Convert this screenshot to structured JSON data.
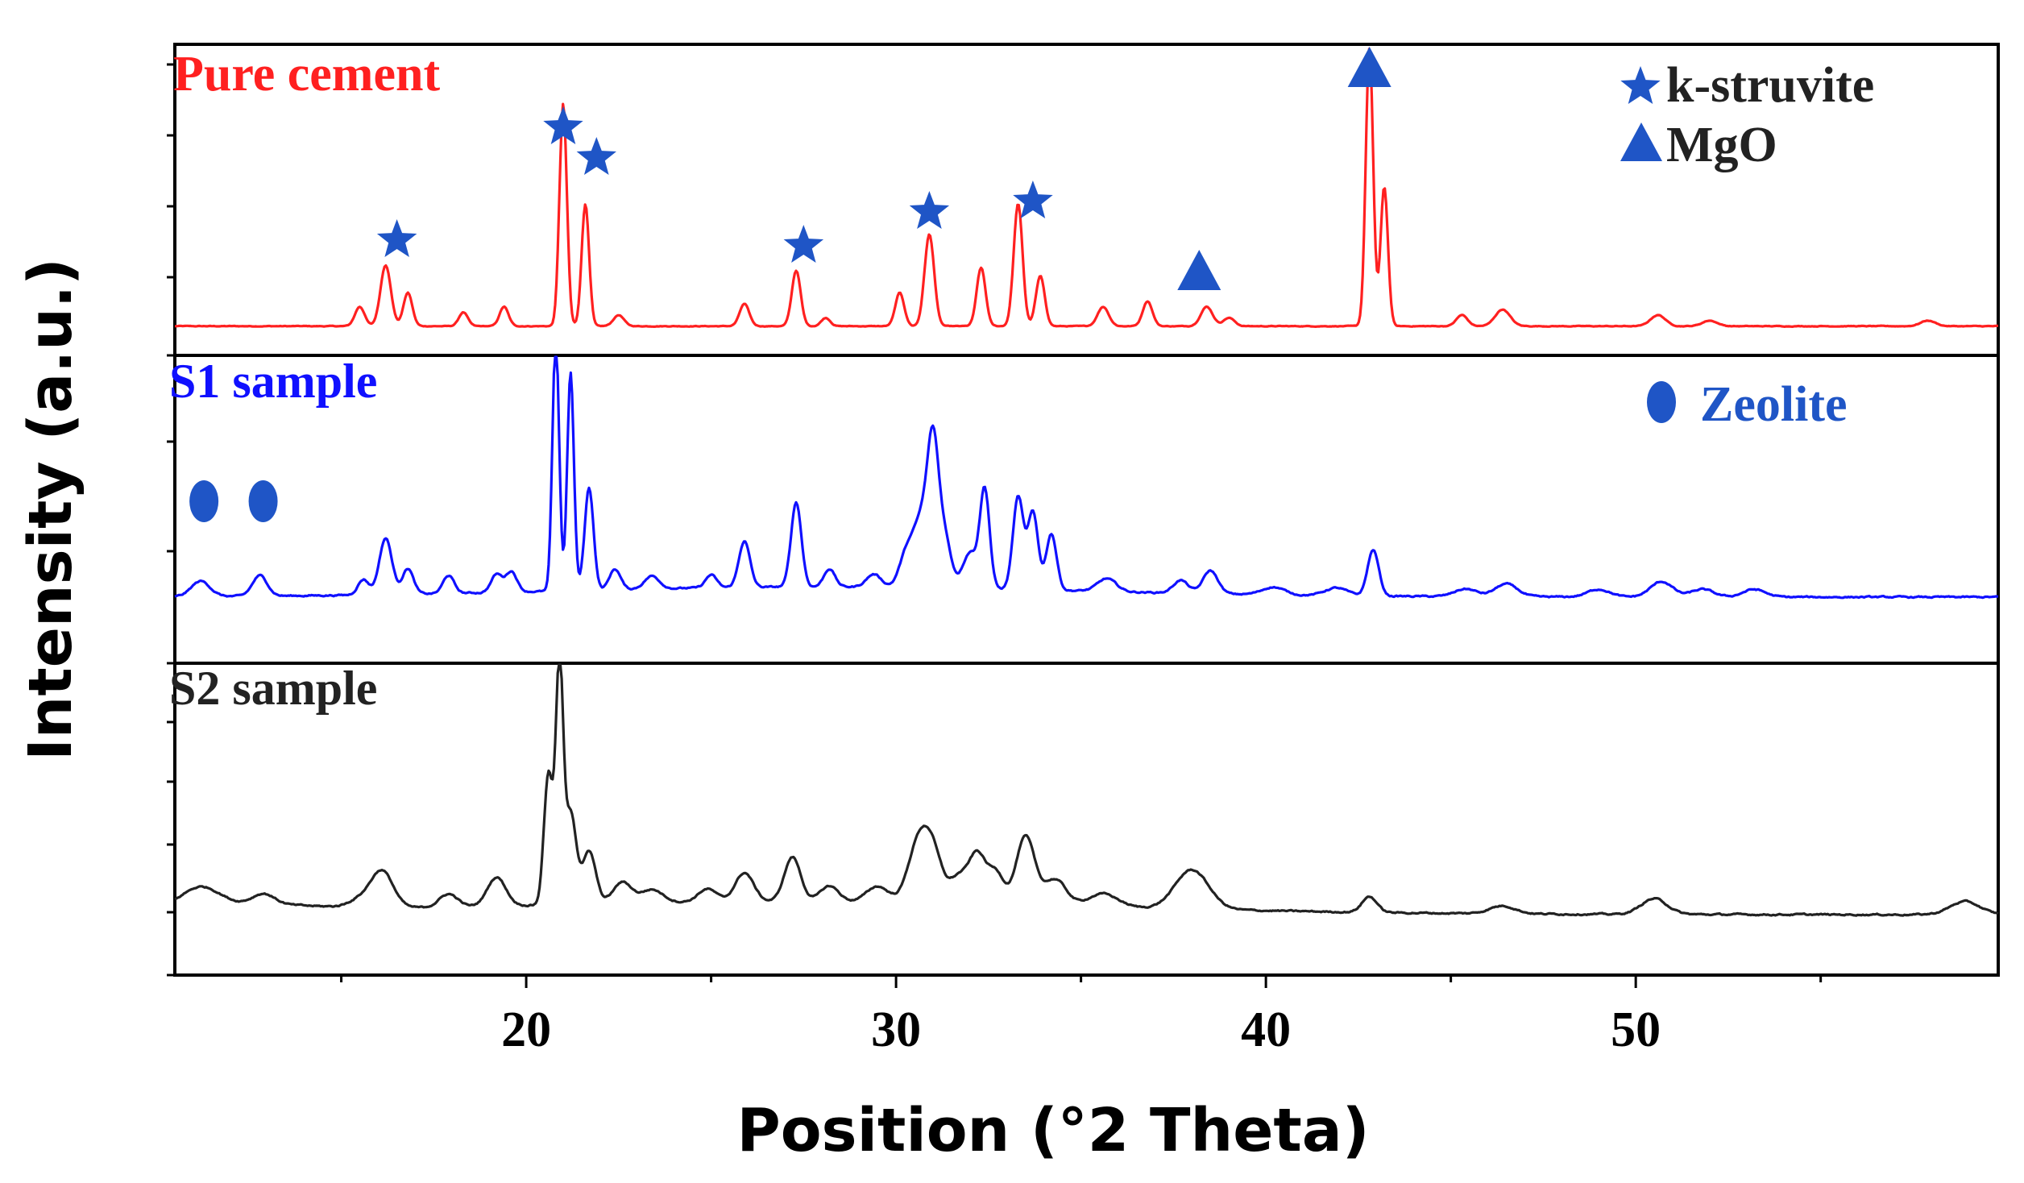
{
  "chart_data": {
    "type": "line",
    "xlabel": "Position (°2 Theta)",
    "ylabel": "Intensity (a.u.)",
    "xlim": [
      10.5,
      59.8
    ],
    "x_ticks": [
      20,
      30,
      40,
      50
    ],
    "y_units": "arbitrary",
    "grid": false,
    "series": [
      {
        "name": "Pure cement",
        "color": "#ff2020",
        "baseline": 0.05,
        "peaks": [
          [
            15.5,
            0.07,
            0.13
          ],
          [
            16.2,
            0.22,
            0.14
          ],
          [
            16.8,
            0.12,
            0.12
          ],
          [
            18.3,
            0.05,
            0.12
          ],
          [
            19.4,
            0.07,
            0.12
          ],
          [
            21.0,
            0.8,
            0.1
          ],
          [
            21.6,
            0.44,
            0.1
          ],
          [
            22.5,
            0.04,
            0.14
          ],
          [
            25.9,
            0.08,
            0.13
          ],
          [
            27.3,
            0.2,
            0.12
          ],
          [
            28.1,
            0.03,
            0.12
          ],
          [
            30.1,
            0.12,
            0.12
          ],
          [
            30.9,
            0.33,
            0.13
          ],
          [
            32.3,
            0.21,
            0.12
          ],
          [
            33.3,
            0.44,
            0.12
          ],
          [
            33.9,
            0.18,
            0.12
          ],
          [
            35.6,
            0.07,
            0.15
          ],
          [
            36.8,
            0.09,
            0.13
          ],
          [
            38.4,
            0.07,
            0.16
          ],
          [
            39.0,
            0.03,
            0.15
          ],
          [
            42.8,
            1.0,
            0.1
          ],
          [
            43.2,
            0.5,
            0.1
          ],
          [
            45.3,
            0.04,
            0.15
          ],
          [
            46.4,
            0.06,
            0.2
          ],
          [
            50.6,
            0.04,
            0.2
          ],
          [
            52.0,
            0.02,
            0.2
          ],
          [
            57.9,
            0.02,
            0.2
          ]
        ]
      },
      {
        "name": "S1 sample",
        "color": "#1010ff",
        "baseline": 0.06,
        "peaks": [
          [
            11.2,
            0.06,
            0.25
          ],
          [
            12.8,
            0.08,
            0.2
          ],
          [
            15.6,
            0.06,
            0.15
          ],
          [
            16.2,
            0.22,
            0.17
          ],
          [
            16.8,
            0.1,
            0.15
          ],
          [
            17.9,
            0.07,
            0.15
          ],
          [
            19.2,
            0.07,
            0.15
          ],
          [
            19.6,
            0.08,
            0.15
          ],
          [
            20.8,
            1.0,
            0.09
          ],
          [
            21.2,
            0.85,
            0.09
          ],
          [
            21.7,
            0.4,
            0.12
          ],
          [
            22.4,
            0.08,
            0.15
          ],
          [
            23.4,
            0.05,
            0.2
          ],
          [
            25.0,
            0.05,
            0.15
          ],
          [
            25.9,
            0.18,
            0.15
          ],
          [
            27.3,
            0.33,
            0.14
          ],
          [
            28.2,
            0.07,
            0.15
          ],
          [
            29.4,
            0.05,
            0.2
          ],
          [
            30.3,
            0.14,
            0.2
          ],
          [
            30.7,
            0.25,
            0.2
          ],
          [
            31.0,
            0.5,
            0.15
          ],
          [
            31.3,
            0.2,
            0.18
          ],
          [
            32.0,
            0.14,
            0.2
          ],
          [
            32.4,
            0.38,
            0.13
          ],
          [
            33.3,
            0.36,
            0.14
          ],
          [
            33.7,
            0.3,
            0.14
          ],
          [
            34.2,
            0.22,
            0.14
          ],
          [
            35.7,
            0.05,
            0.25
          ],
          [
            37.7,
            0.05,
            0.2
          ],
          [
            38.5,
            0.09,
            0.2
          ],
          [
            40.2,
            0.03,
            0.3
          ],
          [
            41.9,
            0.03,
            0.3
          ],
          [
            42.9,
            0.18,
            0.15
          ],
          [
            45.4,
            0.03,
            0.3
          ],
          [
            46.5,
            0.05,
            0.3
          ],
          [
            49.0,
            0.03,
            0.3
          ],
          [
            50.7,
            0.06,
            0.3
          ],
          [
            51.8,
            0.03,
            0.3
          ],
          [
            53.2,
            0.03,
            0.3
          ]
        ]
      },
      {
        "name": "S2 sample",
        "color": "#222222",
        "baseline": 0.0,
        "peaks": [
          [
            11.2,
            0.07,
            0.5
          ],
          [
            12.9,
            0.04,
            0.3
          ],
          [
            15.5,
            0.03,
            0.3
          ],
          [
            16.1,
            0.14,
            0.3
          ],
          [
            17.9,
            0.05,
            0.25
          ],
          [
            19.2,
            0.11,
            0.25
          ],
          [
            20.6,
            0.5,
            0.12
          ],
          [
            20.9,
            0.9,
            0.1
          ],
          [
            21.2,
            0.35,
            0.15
          ],
          [
            21.7,
            0.2,
            0.18
          ],
          [
            22.6,
            0.08,
            0.25
          ],
          [
            23.4,
            0.05,
            0.3
          ],
          [
            24.9,
            0.05,
            0.25
          ],
          [
            25.9,
            0.11,
            0.25
          ],
          [
            27.2,
            0.17,
            0.22
          ],
          [
            28.2,
            0.06,
            0.25
          ],
          [
            29.5,
            0.06,
            0.3
          ],
          [
            30.6,
            0.22,
            0.28
          ],
          [
            31.0,
            0.17,
            0.25
          ],
          [
            31.7,
            0.1,
            0.25
          ],
          [
            32.2,
            0.18,
            0.22
          ],
          [
            32.7,
            0.12,
            0.22
          ],
          [
            33.5,
            0.26,
            0.25
          ],
          [
            34.3,
            0.1,
            0.3
          ],
          [
            35.6,
            0.05,
            0.4
          ],
          [
            38.0,
            0.15,
            0.45
          ],
          [
            42.8,
            0.06,
            0.2
          ],
          [
            46.4,
            0.03,
            0.35
          ],
          [
            50.5,
            0.06,
            0.35
          ],
          [
            58.9,
            0.05,
            0.4
          ]
        ]
      }
    ],
    "annotations": {
      "k_struvite_peaks": [
        16.2,
        21.0,
        21.9,
        27.5,
        30.9,
        33.7
      ],
      "mgo_peaks": [
        38.5,
        42.8
      ],
      "zeolite_peaks": [
        11.2,
        12.8
      ]
    }
  },
  "legend": {
    "k_struvite": "k-struvite",
    "mgo": "MgO",
    "zeolite": "Zeolite"
  },
  "colors": {
    "marker": "#1f55c6",
    "axis": "#000000"
  }
}
